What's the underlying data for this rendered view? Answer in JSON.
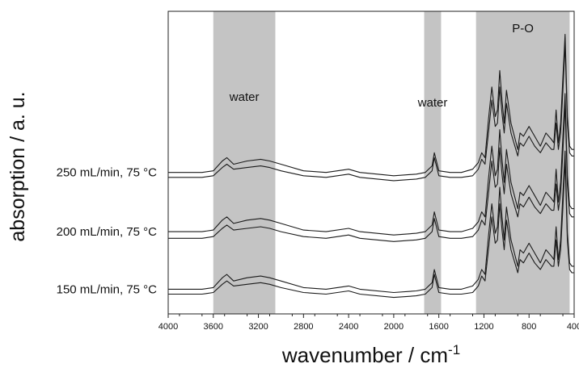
{
  "chart_data": {
    "type": "line",
    "xlabel": "wavenumber / cm",
    "xlabel_superscript": "-1",
    "ylabel": "absorption / a. u.",
    "xlim": [
      4000,
      400
    ],
    "x_reversed": true,
    "x_ticks": [
      4000,
      3600,
      3200,
      2800,
      2400,
      2000,
      1600,
      1200,
      800,
      400
    ],
    "grid": false,
    "y_ticks_shown": false,
    "highlight_regions": [
      {
        "label": "water",
        "from": 3600,
        "to": 3050
      },
      {
        "label": "water",
        "from": 1730,
        "to": 1580
      },
      {
        "label": "P-O",
        "from": 1270,
        "to": 440
      }
    ],
    "series": [
      {
        "name": "250 mL/min, 75 °C",
        "traces": [
          {
            "x": [
              4000,
              3700,
              3600,
              3520,
              3480,
              3420,
              3300,
              3180,
              3100,
              3000,
              2800,
              2600,
              2400,
              2300,
              2000,
              1800,
              1720,
              1660,
              1640,
              1600,
              1500,
              1400,
              1300,
              1250,
              1220,
              1190,
              1160,
              1130,
              1100,
              1080,
              1060,
              1040,
              1020,
              1000,
              960,
              900,
              880,
              850,
              800,
              750,
              700,
              650,
              600,
              580,
              560,
              540,
              520,
              500,
              480,
              460,
              440,
              420,
              400
            ],
            "y": [
              3.7,
              3.7,
              3.75,
              4.05,
              4.15,
              3.95,
              4.05,
              4.1,
              4.05,
              3.95,
              3.75,
              3.7,
              3.8,
              3.7,
              3.6,
              3.65,
              3.7,
              3.9,
              4.3,
              3.75,
              3.7,
              3.7,
              3.8,
              4.0,
              4.3,
              4.15,
              5.3,
              6.3,
              5.4,
              5.6,
              6.8,
              5.9,
              5.2,
              6.2,
              5.2,
              4.4,
              4.9,
              4.8,
              5.1,
              4.8,
              4.5,
              4.9,
              4.7,
              4.6,
              5.6,
              4.6,
              5.2,
              6.6,
              7.9,
              5.4,
              4.5,
              4.4,
              4.4
            ]
          },
          {
            "x": [
              4000,
              3700,
              3600,
              3520,
              3480,
              3420,
              3300,
              3180,
              3100,
              3000,
              2800,
              2600,
              2400,
              2300,
              2000,
              1800,
              1720,
              1660,
              1640,
              1600,
              1500,
              1400,
              1300,
              1250,
              1220,
              1190,
              1160,
              1130,
              1100,
              1080,
              1060,
              1040,
              1020,
              1000,
              960,
              900,
              880,
              850,
              800,
              750,
              700,
              650,
              600,
              580,
              560,
              540,
              520,
              500,
              480,
              460,
              440,
              420,
              400
            ],
            "y": [
              3.55,
              3.55,
              3.6,
              3.85,
              3.95,
              3.8,
              3.85,
              3.9,
              3.85,
              3.75,
              3.6,
              3.55,
              3.65,
              3.55,
              3.45,
              3.5,
              3.55,
              3.75,
              4.15,
              3.6,
              3.55,
              3.55,
              3.6,
              3.8,
              4.1,
              3.95,
              4.9,
              5.9,
              5.1,
              5.2,
              6.3,
              5.5,
              4.9,
              5.8,
              4.9,
              4.2,
              4.6,
              4.5,
              4.8,
              4.5,
              4.3,
              4.6,
              4.4,
              4.4,
              5.2,
              4.4,
              4.9,
              6.2,
              7.6,
              5.2,
              4.3,
              4.2,
              4.2
            ]
          }
        ]
      },
      {
        "name": "200 mL/min, 75 °C",
        "traces": [
          {
            "x": [
              4000,
              3700,
              3600,
              3520,
              3480,
              3420,
              3300,
              3180,
              3100,
              3000,
              2800,
              2600,
              2400,
              2300,
              2000,
              1800,
              1720,
              1660,
              1640,
              1600,
              1500,
              1400,
              1300,
              1250,
              1220,
              1190,
              1160,
              1130,
              1100,
              1080,
              1060,
              1040,
              1020,
              1000,
              960,
              900,
              880,
              850,
              800,
              750,
              700,
              650,
              600,
              580,
              560,
              540,
              520,
              500,
              480,
              460,
              440,
              420,
              400
            ],
            "y": [
              1.9,
              1.9,
              1.95,
              2.25,
              2.35,
              2.15,
              2.25,
              2.3,
              2.25,
              2.15,
              1.95,
              1.9,
              2.0,
              1.9,
              1.8,
              1.85,
              1.9,
              2.1,
              2.5,
              1.95,
              1.9,
              1.9,
              2.0,
              2.2,
              2.5,
              2.35,
              3.5,
              4.5,
              3.6,
              3.8,
              5.0,
              4.1,
              3.4,
              4.4,
              3.4,
              2.6,
              3.1,
              3.0,
              3.3,
              3.0,
              2.7,
              3.1,
              2.9,
              2.8,
              3.8,
              2.8,
              3.4,
              4.8,
              6.1,
              3.6,
              2.7,
              2.6,
              2.6
            ]
          },
          {
            "x": [
              4000,
              3700,
              3600,
              3520,
              3480,
              3420,
              3300,
              3180,
              3100,
              3000,
              2800,
              2600,
              2400,
              2300,
              2000,
              1800,
              1720,
              1660,
              1640,
              1600,
              1500,
              1400,
              1300,
              1250,
              1220,
              1190,
              1160,
              1130,
              1100,
              1080,
              1060,
              1040,
              1020,
              1000,
              960,
              900,
              880,
              850,
              800,
              750,
              700,
              650,
              600,
              580,
              560,
              540,
              520,
              500,
              480,
              460,
              440,
              420,
              400
            ],
            "y": [
              1.7,
              1.7,
              1.75,
              2.0,
              2.1,
              1.95,
              2.0,
              2.05,
              2.0,
              1.9,
              1.75,
              1.7,
              1.8,
              1.7,
              1.6,
              1.65,
              1.7,
              1.9,
              2.3,
              1.75,
              1.7,
              1.7,
              1.75,
              1.95,
              2.25,
              2.1,
              3.05,
              4.05,
              3.25,
              3.35,
              4.45,
              3.65,
              3.05,
              3.95,
              3.05,
              2.35,
              2.75,
              2.65,
              2.95,
              2.65,
              2.45,
              2.75,
              2.55,
              2.55,
              3.35,
              2.55,
              3.05,
              4.35,
              5.75,
              3.35,
              2.45,
              2.35,
              2.35
            ]
          }
        ]
      },
      {
        "name": "150 mL/min, 75 °C",
        "traces": [
          {
            "x": [
              4000,
              3700,
              3600,
              3520,
              3480,
              3420,
              3300,
              3180,
              3100,
              3000,
              2800,
              2600,
              2400,
              2300,
              2000,
              1800,
              1720,
              1660,
              1640,
              1600,
              1500,
              1400,
              1300,
              1250,
              1220,
              1190,
              1160,
              1130,
              1100,
              1080,
              1060,
              1040,
              1020,
              1000,
              960,
              900,
              880,
              850,
              800,
              750,
              700,
              650,
              600,
              580,
              560,
              540,
              520,
              500,
              480,
              460,
              440,
              420,
              400
            ],
            "y": [
              0.15,
              0.15,
              0.2,
              0.5,
              0.6,
              0.4,
              0.5,
              0.55,
              0.5,
              0.4,
              0.2,
              0.15,
              0.25,
              0.15,
              0.05,
              0.1,
              0.15,
              0.35,
              0.75,
              0.2,
              0.15,
              0.15,
              0.25,
              0.45,
              0.75,
              0.6,
              1.75,
              2.75,
              1.85,
              2.05,
              3.25,
              2.35,
              1.65,
              2.65,
              1.65,
              0.85,
              1.35,
              1.25,
              1.55,
              1.25,
              0.95,
              1.35,
              1.15,
              1.05,
              2.05,
              1.05,
              1.65,
              3.05,
              4.35,
              1.85,
              0.95,
              0.85,
              0.85
            ]
          },
          {
            "x": [
              4000,
              3700,
              3600,
              3520,
              3480,
              3420,
              3300,
              3180,
              3100,
              3000,
              2800,
              2600,
              2400,
              2300,
              2000,
              1800,
              1720,
              1660,
              1640,
              1600,
              1500,
              1400,
              1300,
              1250,
              1220,
              1190,
              1160,
              1130,
              1100,
              1080,
              1060,
              1040,
              1020,
              1000,
              960,
              900,
              880,
              850,
              800,
              750,
              700,
              650,
              600,
              580,
              560,
              540,
              520,
              500,
              480,
              460,
              440,
              420,
              400
            ],
            "y": [
              0.0,
              0.0,
              0.05,
              0.3,
              0.4,
              0.25,
              0.3,
              0.35,
              0.3,
              0.2,
              0.05,
              0.0,
              0.1,
              0.0,
              -0.1,
              -0.05,
              0.0,
              0.2,
              0.6,
              0.05,
              0.0,
              0.0,
              0.05,
              0.25,
              0.55,
              0.4,
              1.35,
              2.35,
              1.55,
              1.65,
              2.75,
              1.95,
              1.35,
              2.25,
              1.35,
              0.65,
              1.05,
              0.95,
              1.25,
              0.95,
              0.75,
              1.05,
              0.85,
              0.85,
              1.65,
              0.85,
              1.35,
              2.65,
              4.05,
              1.65,
              0.75,
              0.65,
              0.65
            ]
          }
        ]
      }
    ]
  }
}
